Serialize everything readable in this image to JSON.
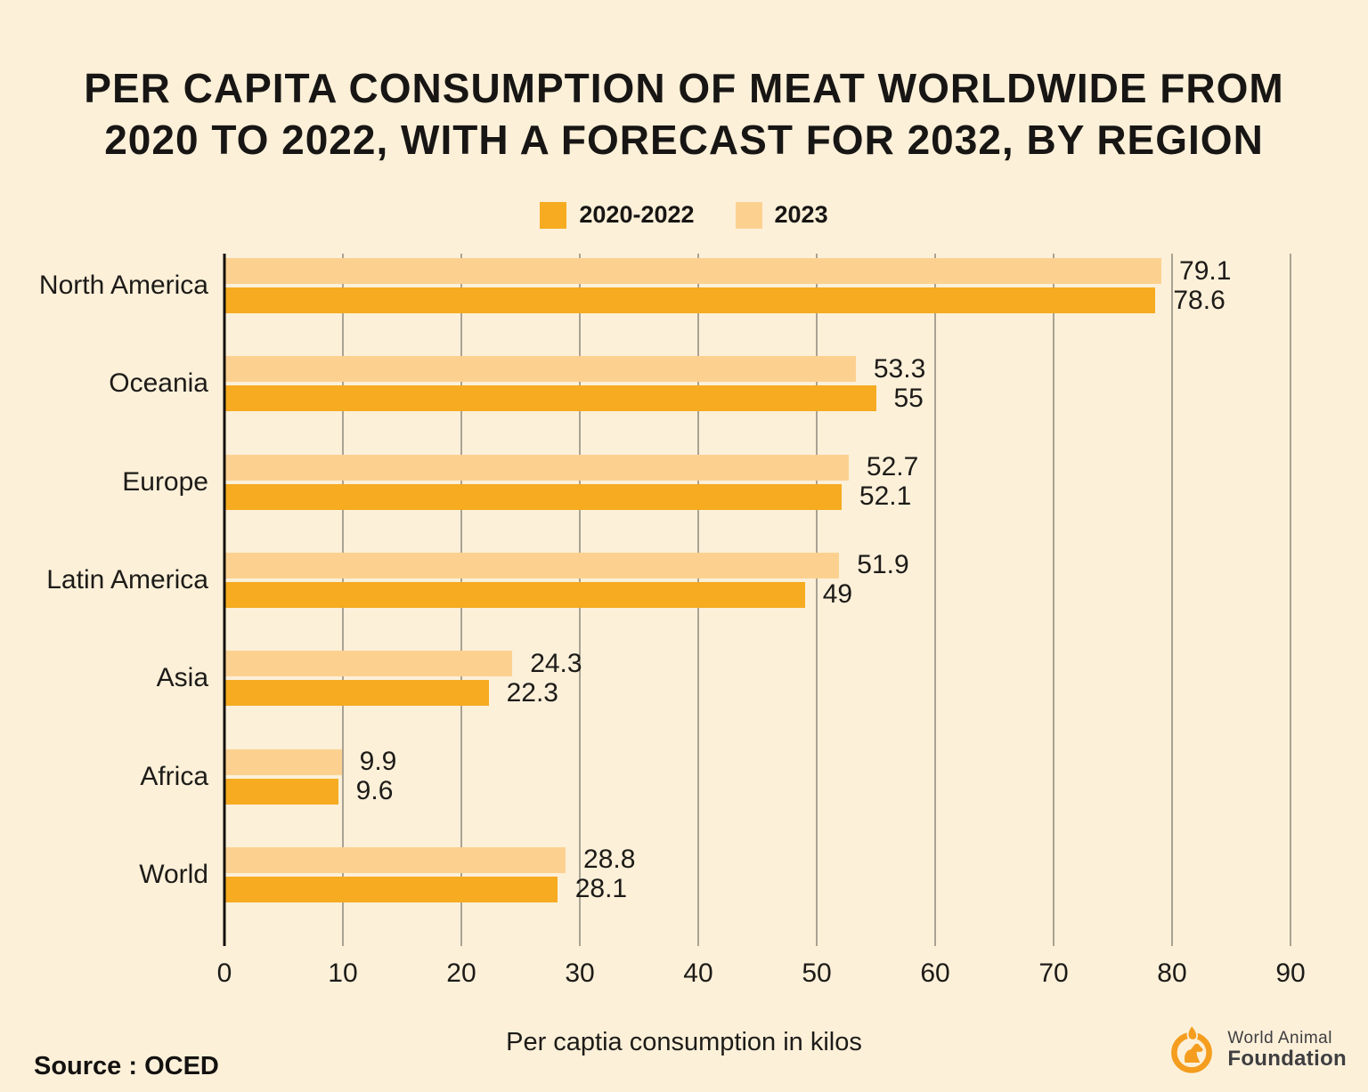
{
  "page": {
    "title_lines": [
      "PER CAPITA CONSUMPTION OF MEAT WORLDWIDE FROM",
      "2020 TO 2022, WITH A FORECAST FOR 2032, BY REGION"
    ],
    "source_label": "Source : OCED",
    "logo": {
      "line1": "World Animal",
      "line2": "Foundation"
    }
  },
  "colors": {
    "background": "#FCF0D9",
    "bar_dark": "#F6AB20",
    "bar_light": "#FCD190",
    "gridline": "#57534B",
    "axis": "#14110D",
    "text": "#1D1B18",
    "logo_orange": "#F49D1F",
    "logo_text": "#3F3E40"
  },
  "chart_data": {
    "type": "bar",
    "orientation": "horizontal",
    "title": "PER CAPITA CONSUMPTION OF MEAT WORLDWIDE FROM 2020 TO 2022, WITH A FORECAST FOR 2032, BY REGION",
    "categories": [
      "North America",
      "Oceania",
      "Europe",
      "Latin America",
      "Asia",
      "Africa",
      "World"
    ],
    "series": [
      {
        "name": "2023",
        "role": "light",
        "values": [
          79.1,
          53.3,
          52.7,
          51.9,
          24.3,
          9.9,
          28.8
        ]
      },
      {
        "name": "2020-2022",
        "role": "dark",
        "values": [
          78.6,
          55,
          52.1,
          49,
          22.3,
          9.6,
          28.1
        ]
      }
    ],
    "legend": [
      "2020-2022",
      "2023"
    ],
    "legend_position": "top-center",
    "xlabel": "Per captia consumption in kilos",
    "xlim": [
      0,
      90
    ],
    "xticks": [
      0,
      10,
      20,
      30,
      40,
      50,
      60,
      70,
      80,
      90
    ],
    "grid": true,
    "value_labels": true
  }
}
